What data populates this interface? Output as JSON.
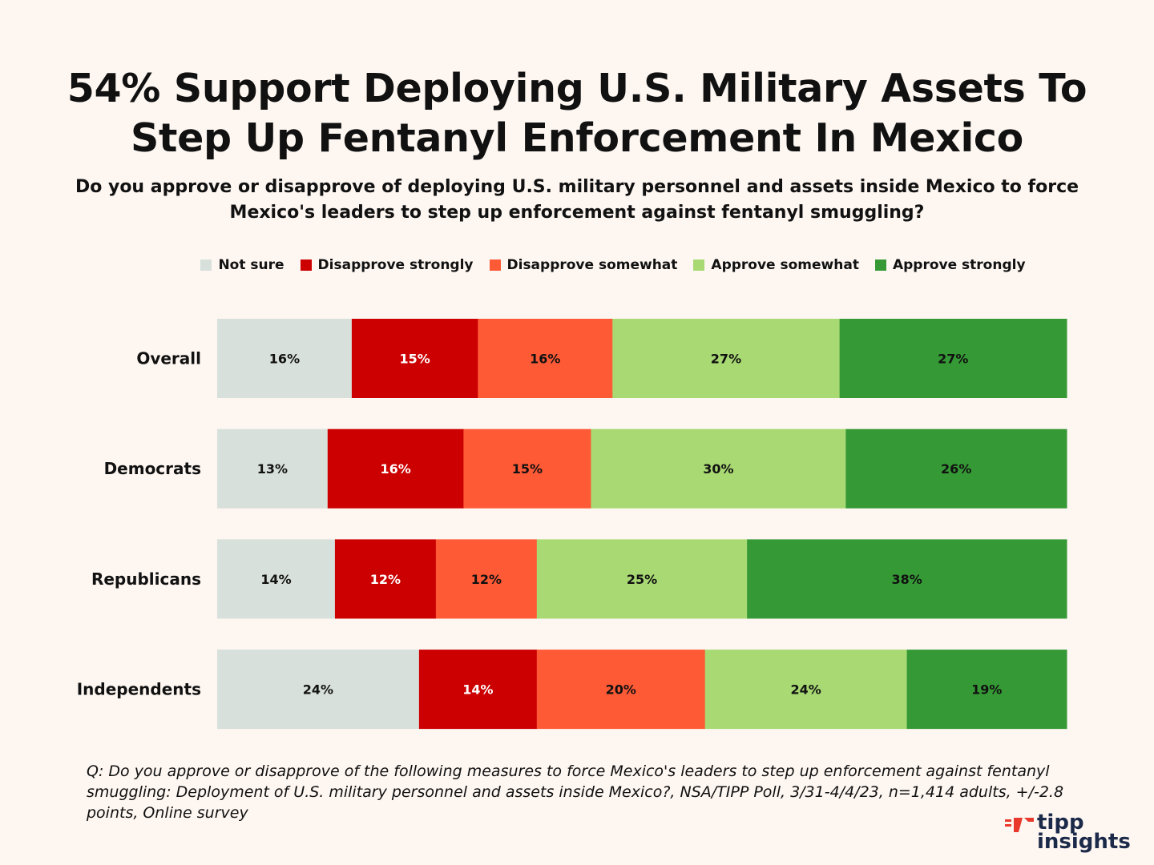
{
  "colors": {
    "background": "#fdf6f1",
    "not_sure": "#d8e0dc",
    "disapprove_strongly": "#cc0000",
    "disapprove_somewhat": "#ff5a36",
    "approve_somewhat": "#a8d973",
    "approve_strongly": "#359a35",
    "logo_accent": "#e8392c",
    "logo_text": "#1c2a4a"
  },
  "chart_data": {
    "type": "bar",
    "orientation": "horizontal",
    "stacked": true,
    "normalized": true,
    "title": "54% Support Deploying U.S. Military Assets To Step Up Fentanyl Enforcement In Mexico",
    "subtitle": "Do you approve or disapprove of deploying U.S. military personnel and assets inside Mexico to force Mexico's leaders to step up enforcement against fentanyl smuggling?",
    "categories": [
      "Overall",
      "Democrats",
      "Republicans",
      "Independents"
    ],
    "series": [
      {
        "name": "Not sure",
        "key": "not_sure",
        "label_color": "#111111",
        "values": [
          16,
          13,
          14,
          24
        ]
      },
      {
        "name": "Disapprove strongly",
        "key": "disapprove_strongly",
        "label_color": "#ffffff",
        "values": [
          15,
          16,
          12,
          14
        ]
      },
      {
        "name": "Disapprove somewhat",
        "key": "disapprove_somewhat",
        "label_color": "#111111",
        "values": [
          16,
          15,
          12,
          20
        ]
      },
      {
        "name": "Approve somewhat",
        "key": "approve_somewhat",
        "label_color": "#111111",
        "values": [
          27,
          30,
          25,
          24
        ]
      },
      {
        "name": "Approve strongly",
        "key": "approve_strongly",
        "label_color": "#111111",
        "values": [
          27,
          26,
          38,
          19
        ]
      }
    ],
    "value_suffix": "%",
    "legend_position": "top",
    "xlabel": "",
    "ylabel": ""
  },
  "footnote": "Q: Do you approve or disapprove of the following measures to force Mexico's leaders to step up enforcement against fentanyl smuggling: Deployment of U.S. military personnel and assets inside Mexico?, NSA/TIPP Poll, 3/31-4/4/23, n=1,414 adults, +/-2.8 points, Online survey",
  "logo": {
    "line1": "tipp",
    "line2": "insights"
  }
}
